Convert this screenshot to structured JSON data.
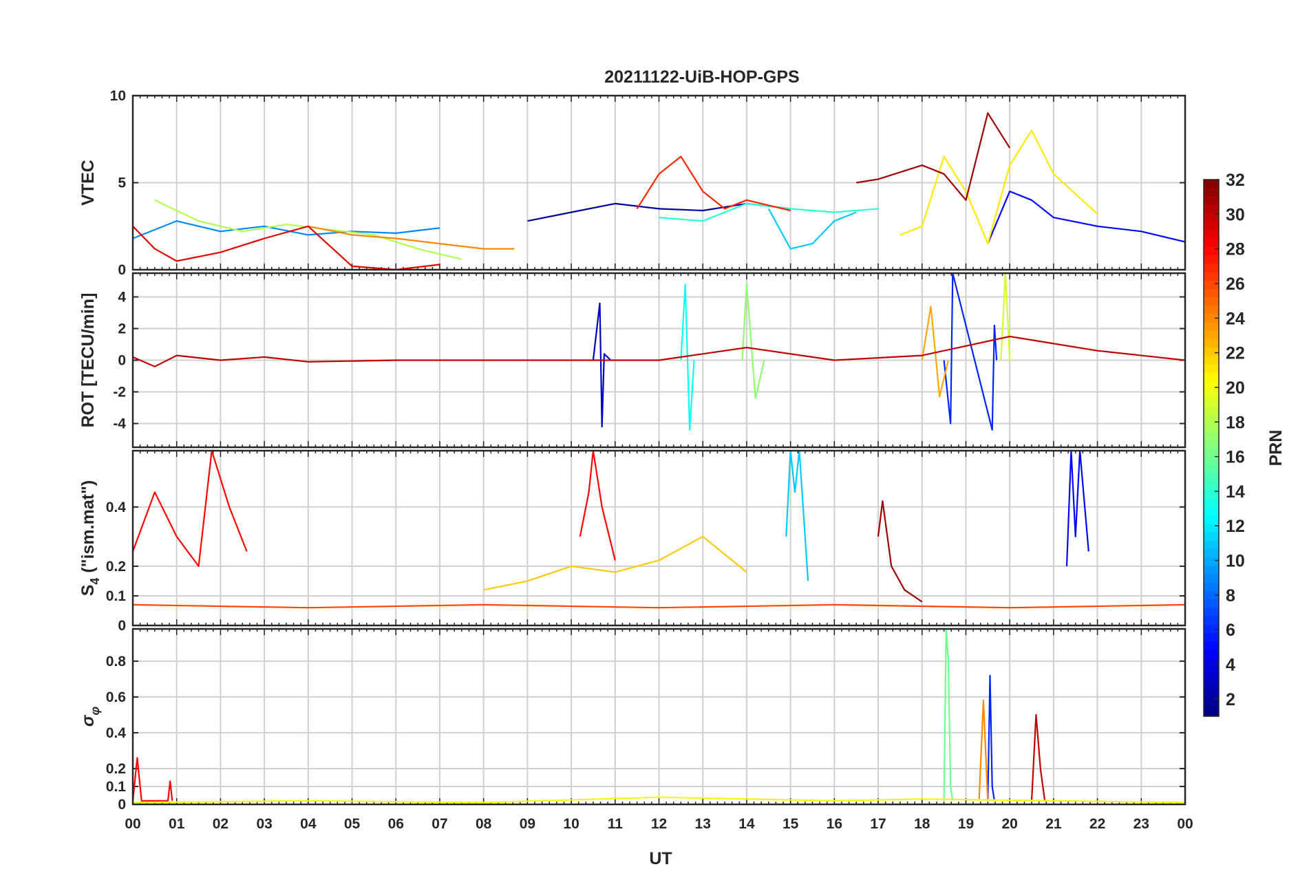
{
  "chart_data": {
    "type": "line",
    "title": "20211122-UiB-HOP-GPS",
    "xlabel": "UT",
    "x_range_hours": [
      0,
      24
    ],
    "x_tick_labels": [
      "00",
      "01",
      "02",
      "03",
      "04",
      "05",
      "06",
      "07",
      "08",
      "09",
      "10",
      "11",
      "12",
      "13",
      "14",
      "15",
      "16",
      "17",
      "18",
      "19",
      "20",
      "21",
      "22",
      "23",
      "00"
    ],
    "grid": true,
    "colormap": "jet",
    "colorbar": {
      "label": "PRN",
      "range": [
        1,
        32
      ],
      "tick_labels": [
        "2",
        "4",
        "6",
        "8",
        "10",
        "12",
        "14",
        "16",
        "18",
        "20",
        "22",
        "24",
        "26",
        "28",
        "30",
        "32"
      ],
      "tick_values": [
        2,
        4,
        6,
        8,
        10,
        12,
        14,
        16,
        18,
        20,
        22,
        24,
        26,
        28,
        30,
        32
      ],
      "placement": "right"
    },
    "panels": [
      {
        "name": "vtec",
        "ylabel": "VTEC",
        "ylim": [
          0,
          10
        ],
        "yticks": [
          0,
          5,
          10
        ],
        "ytick_labels": [
          "0",
          "5",
          "10"
        ],
        "representative_series": [
          {
            "prn": 2,
            "x": [
              9.0,
              10.0,
              11.0,
              12.0,
              13.0,
              14.0,
              15.0
            ],
            "y": [
              2.8,
              3.3,
              3.8,
              3.5,
              3.4,
              3.8,
              3.5
            ]
          },
          {
            "prn": 5,
            "x": [
              19.5,
              20.0,
              20.5,
              21.0,
              22.0,
              23.0,
              24.0
            ],
            "y": [
              1.5,
              4.5,
              4.0,
              3.0,
              2.5,
              2.2,
              1.6
            ]
          },
          {
            "prn": 9,
            "x": [
              0.0,
              1.0,
              2.0,
              3.0,
              4.0,
              5.0,
              6.0,
              7.0
            ],
            "y": [
              1.8,
              2.8,
              2.2,
              2.5,
              2.0,
              2.2,
              2.1,
              2.4
            ]
          },
          {
            "prn": 11,
            "x": [
              14.5,
              15.0,
              15.5,
              16.0,
              16.5
            ],
            "y": [
              3.5,
              1.2,
              1.5,
              2.8,
              3.3
            ]
          },
          {
            "prn": 14,
            "x": [
              12.0,
              13.0,
              14.0,
              15.0,
              16.0,
              17.0
            ],
            "y": [
              3.0,
              2.8,
              3.8,
              3.5,
              3.3,
              3.5
            ]
          },
          {
            "prn": 18,
            "x": [
              0.5,
              1.5,
              2.5,
              3.5,
              4.5,
              5.5,
              6.5,
              7.5
            ],
            "y": [
              4.0,
              2.8,
              2.2,
              2.6,
              2.3,
              2.0,
              1.2,
              0.6
            ]
          },
          {
            "prn": 21,
            "x": [
              17.5,
              18.0,
              18.5,
              19.0,
              19.5,
              20.0,
              20.5,
              21.0,
              22.0
            ],
            "y": [
              2.0,
              2.5,
              6.5,
              4.5,
              1.5,
              6.0,
              8.0,
              5.5,
              3.2
            ]
          },
          {
            "prn": 24,
            "x": [
              4.0,
              5.0,
              6.0,
              7.0,
              8.0,
              8.7
            ],
            "y": [
              2.5,
              2.0,
              1.8,
              1.5,
              1.2,
              1.2
            ]
          },
          {
            "prn": 27,
            "x": [
              11.5,
              12.0,
              12.5,
              13.0,
              13.5,
              14.0,
              15.0
            ],
            "y": [
              3.5,
              5.5,
              6.5,
              4.5,
              3.5,
              4.0,
              3.4
            ]
          },
          {
            "prn": 29,
            "x": [
              0.0,
              0.5,
              1.0,
              2.0,
              3.0,
              4.0,
              5.0,
              6.0,
              7.0
            ],
            "y": [
              2.5,
              1.2,
              0.5,
              1.0,
              1.8,
              2.5,
              0.2,
              0.0,
              0.3
            ]
          },
          {
            "prn": 31,
            "x": [
              16.5,
              17.0,
              18.0,
              18.5,
              19.0,
              19.5,
              20.0
            ],
            "y": [
              5.0,
              5.2,
              6.0,
              5.5,
              4.0,
              9.0,
              7.0
            ]
          }
        ]
      },
      {
        "name": "rot",
        "ylabel": "ROT [TECU/min]",
        "ylim": [
          -5.5,
          5.5
        ],
        "yticks": [
          -4,
          -2,
          0,
          2,
          4
        ],
        "ytick_labels": [
          "-4",
          "-2",
          "0",
          "2",
          "4"
        ],
        "representative_series": [
          {
            "prn": 3,
            "x": [
              10.5,
              10.65,
              10.7,
              10.75,
              10.9
            ],
            "y": [
              0.0,
              3.6,
              -4.2,
              0.4,
              0.0
            ]
          },
          {
            "prn": 6,
            "x": [
              18.5,
              18.65,
              18.7,
              19.6,
              19.65,
              19.7
            ],
            "y": [
              0.0,
              -4.0,
              5.5,
              -4.4,
              2.2,
              0.0
            ]
          },
          {
            "prn": 13,
            "x": [
              12.5,
              12.6,
              12.7,
              12.8
            ],
            "y": [
              0.0,
              4.8,
              -4.4,
              0.0
            ]
          },
          {
            "prn": 17,
            "x": [
              13.9,
              14.0,
              14.2,
              14.4
            ],
            "y": [
              0.0,
              4.8,
              -2.4,
              0.0
            ]
          },
          {
            "prn": 19,
            "x": [
              19.8,
              19.9,
              20.0
            ],
            "y": [
              0.0,
              5.5,
              0.0
            ]
          },
          {
            "prn": 23,
            "x": [
              18.0,
              18.2,
              18.4,
              18.6
            ],
            "y": [
              0.0,
              3.4,
              -2.3,
              0.0
            ]
          },
          {
            "prn": 30,
            "x": [
              0.0,
              0.5,
              1.0,
              2.0,
              3.0,
              4.0,
              6.0,
              8.0,
              10.0,
              12.0,
              14.0,
              16.0,
              18.0,
              20.0,
              22.0,
              24.0
            ],
            "y": [
              0.2,
              -0.4,
              0.3,
              0.0,
              0.2,
              -0.1,
              0.0,
              0.0,
              0.0,
              0.0,
              0.8,
              0.0,
              0.3,
              1.5,
              0.6,
              0.0
            ]
          }
        ]
      },
      {
        "name": "s4",
        "ylabel": "S4 (\"ism.mat\")",
        "ylabel_main": "S",
        "ylabel_sub": "4",
        "ylabel_rest": " (\"ism.mat\")",
        "ylim": [
          0,
          0.59
        ],
        "yticks": [
          0,
          0.1,
          0.2,
          0.4
        ],
        "ytick_labels": [
          "0",
          "0.1",
          "0.2",
          "0.4"
        ],
        "representative_series": [
          {
            "prn": 5,
            "x": [
              21.3,
              21.4,
              21.5,
              21.6,
              21.8
            ],
            "y": [
              0.2,
              0.59,
              0.3,
              0.59,
              0.25
            ]
          },
          {
            "prn": 11,
            "x": [
              14.9,
              15.0,
              15.1,
              15.2,
              15.4
            ],
            "y": [
              0.3,
              0.59,
              0.45,
              0.59,
              0.15
            ]
          },
          {
            "prn": 22,
            "x": [
              8.0,
              9.0,
              10.0,
              11.0,
              12.0,
              13.0,
              14.0
            ],
            "y": [
              0.12,
              0.15,
              0.2,
              0.18,
              0.22,
              0.3,
              0.18
            ]
          },
          {
            "prn": 28,
            "x": [
              0.0,
              0.5,
              1.0,
              1.5,
              1.8,
              2.2,
              2.6
            ],
            "y": [
              0.25,
              0.45,
              0.3,
              0.2,
              0.59,
              0.4,
              0.25
            ]
          },
          {
            "prn": 28,
            "x": [
              10.2,
              10.4,
              10.5,
              10.7,
              11.0
            ],
            "y": [
              0.3,
              0.45,
              0.59,
              0.4,
              0.22
            ]
          },
          {
            "prn": 31,
            "x": [
              17.0,
              17.1,
              17.3,
              17.6,
              18.0
            ],
            "y": [
              0.3,
              0.42,
              0.2,
              0.12,
              0.08
            ]
          },
          {
            "prn": 26,
            "x": [
              0.0,
              4.0,
              8.0,
              12.0,
              16.0,
              20.0,
              24.0
            ],
            "y": [
              0.07,
              0.06,
              0.07,
              0.06,
              0.07,
              0.06,
              0.07
            ]
          }
        ]
      },
      {
        "name": "sigma_phi",
        "ylabel": "σφ",
        "ylabel_main": "σ",
        "ylabel_sub": "φ",
        "ylim": [
          0,
          0.98
        ],
        "yticks": [
          0,
          0.1,
          0.2,
          0.4,
          0.6,
          0.8
        ],
        "ytick_labels": [
          "0",
          "0.1",
          "0.2",
          "0.4",
          "0.6",
          "0.8"
        ],
        "representative_series": [
          {
            "prn": 16,
            "x": [
              18.5,
              18.55,
              18.6,
              18.65,
              18.7
            ],
            "y": [
              0.02,
              0.98,
              0.8,
              0.1,
              0.02
            ]
          },
          {
            "prn": 6,
            "x": [
              19.5,
              19.55,
              19.6,
              19.65
            ],
            "y": [
              0.02,
              0.72,
              0.1,
              0.02
            ]
          },
          {
            "prn": 24,
            "x": [
              19.3,
              19.4,
              19.5
            ],
            "y": [
              0.02,
              0.58,
              0.02
            ]
          },
          {
            "prn": 30,
            "x": [
              20.5,
              20.6,
              20.7,
              20.8
            ],
            "y": [
              0.02,
              0.5,
              0.2,
              0.02
            ]
          },
          {
            "prn": 28,
            "x": [
              0.0,
              0.1,
              0.2,
              0.8,
              0.85,
              0.9
            ],
            "y": [
              0.02,
              0.26,
              0.02,
              0.02,
              0.13,
              0.02
            ]
          },
          {
            "prn": 20,
            "x": [
              0.0,
              4.0,
              8.0,
              12.0,
              16.0,
              18.0,
              24.0
            ],
            "y": [
              0.01,
              0.02,
              0.01,
              0.04,
              0.02,
              0.03,
              0.01
            ]
          }
        ]
      }
    ]
  }
}
